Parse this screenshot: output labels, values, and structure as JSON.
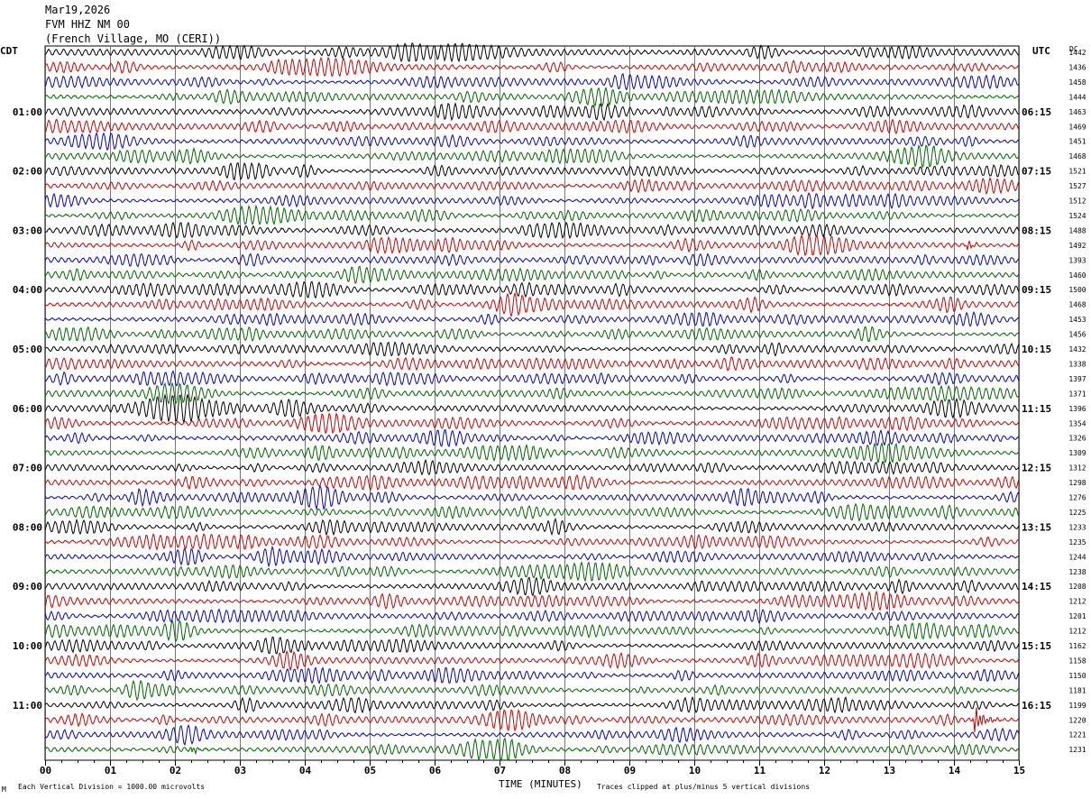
{
  "header": {
    "date": "Mar19,2026",
    "station": "FVM HHZ NM 00",
    "location": "(French Village, MO (CERI))"
  },
  "left_axis_title": "CDT",
  "right_axis_title": "UTC",
  "dc_title": "DC",
  "footer": {
    "vertical_division": "Each Vertical Division = 1000.00 microvolts",
    "x_title": "TIME (MINUTES)",
    "clip_note": "Traces clipped at plus/minus 5 vertical divisions",
    "corner_mark": "M"
  },
  "colors": {
    "traces": [
      "#000000",
      "#cc0000",
      "#0000cc",
      "#006400"
    ],
    "grid": "#000000"
  },
  "chart_data": {
    "type": "line",
    "description_free": true,
    "x": [
      "00",
      "01",
      "02",
      "03",
      "04",
      "05",
      "06",
      "07",
      "08",
      "09",
      "10",
      "11",
      "12",
      "13",
      "14",
      "15"
    ],
    "xlim": [
      0,
      15
    ],
    "traces_per_hour": 4,
    "left_labels": [
      "",
      "01:00",
      "02:00",
      "03:00",
      "04:00",
      "05:00",
      "06:00",
      "07:00",
      "08:00",
      "09:00",
      "10:00",
      "11:00"
    ],
    "right_labels": [
      "",
      "06:15",
      "07:15",
      "08:15",
      "09:15",
      "10:15",
      "11:15",
      "12:15",
      "13:15",
      "14:15",
      "15:15",
      "16:15"
    ],
    "dc_offsets": [
      1442,
      1436,
      1458,
      1444,
      1463,
      1469,
      1451,
      1468,
      1521,
      1527,
      1512,
      1524,
      1488,
      1492,
      1393,
      1460,
      1500,
      1468,
      1453,
      1456,
      1432,
      1338,
      1397,
      1371,
      1396,
      1354,
      1326,
      1309,
      1312,
      1298,
      1276,
      1225,
      1233,
      1235,
      1244,
      1238,
      1208,
      1212,
      1201,
      1212,
      1162,
      1158,
      1150,
      1181,
      1199,
      1220,
      1221,
      1231
    ],
    "events": [
      {
        "trace": 45,
        "minute": 14.3,
        "amplitude": "large"
      },
      {
        "trace": 47,
        "minute": 2.25,
        "amplitude": "medium"
      },
      {
        "trace": 13,
        "minute": 14.2,
        "amplitude": "medium"
      }
    ]
  }
}
